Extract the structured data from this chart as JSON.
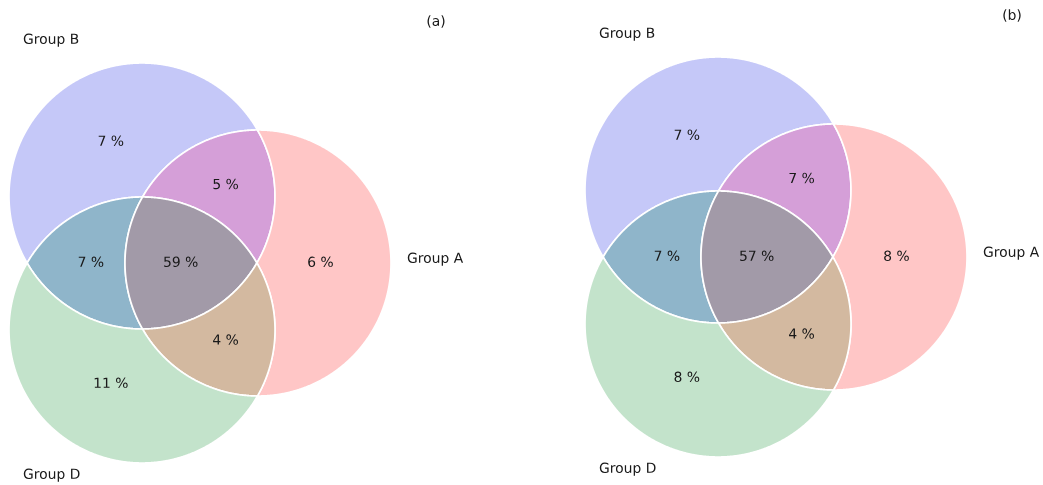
{
  "chart_data": [
    {
      "type": "other",
      "title": "(a)",
      "annotations": [
        "Group B",
        "Group A",
        "Group D"
      ],
      "values": [
        7,
        5,
        7,
        59,
        6,
        4,
        11
      ],
      "value_labels": [
        "7 %",
        "5 %",
        "7 %",
        "59 %",
        "6 %",
        "4 %",
        "11 %"
      ],
      "colors": [
        "#c5c8f8",
        "#d59fd8",
        "#8fb5ca",
        "#a29aa8",
        "#ffc6c6",
        "#d3b9a0",
        "#c3e3cb"
      ]
    },
    {
      "type": "other",
      "title": "(b)",
      "annotations": [
        "Group B",
        "Group A",
        "Group D"
      ],
      "values": [
        7,
        7,
        7,
        57,
        8,
        4,
        8
      ],
      "value_labels": [
        "7 %",
        "7 %",
        "7 %",
        "57 %",
        "8 %",
        "4 %",
        "8 %"
      ],
      "colors": [
        "#c5c8f8",
        "#d59fd8",
        "#8fb5ca",
        "#a29aa8",
        "#ffc6c6",
        "#d3b9a0",
        "#c3e3cb"
      ]
    }
  ]
}
